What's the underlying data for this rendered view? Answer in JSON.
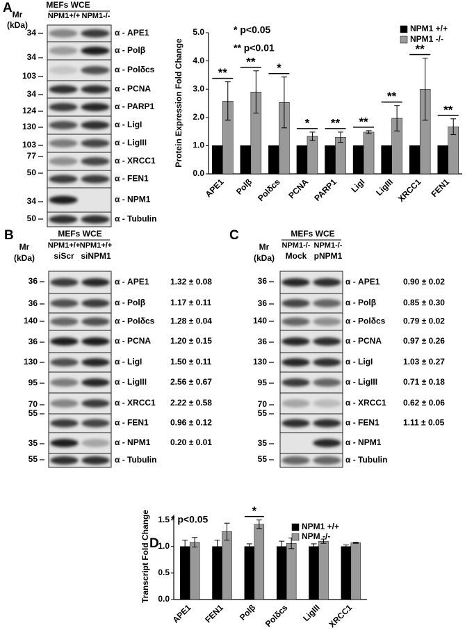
{
  "panels": [
    {
      "letter": "A",
      "header": "MEFs WCE",
      "lanes": [
        "NPM1+/+",
        "NPM1-/-"
      ],
      "mr": "Mr",
      "kda": "(kDa)",
      "markers": [
        34,
        34,
        103,
        34,
        124,
        130,
        103,
        77,
        50,
        34,
        50
      ],
      "antibodies": [
        "α - APE1",
        "α - Polβ",
        "α - Polδcs",
        "α - PCNA",
        "α - PARP1",
        "α - LigI",
        "α - LigIII",
        "α - XRCC1",
        "α - FEN1",
        "α - NPM1",
        "α - Tubulin"
      ]
    },
    {
      "letter": "B",
      "header": "MEFs WCE",
      "lanes": [
        "NPM1+/+",
        "NPM1+/+"
      ],
      "lanes2": [
        "siScr",
        "siNPM1"
      ],
      "mr": "Mr",
      "kda": "(kDa)",
      "markers": [
        36,
        36,
        140,
        36,
        130,
        95,
        70,
        55,
        35,
        55
      ],
      "antibodies": [
        "α - APE1",
        "α - Polβ",
        "α - Polδcs",
        "α - PCNA",
        "α - LigI",
        "α - LigIII",
        "α - XRCC1",
        "α - FEN1",
        "α - NPM1",
        "α - Tubulin"
      ],
      "ratios": [
        "1.32 ± 0.08",
        "1.17 ± 0.11",
        "1.28 ± 0.04",
        "1.20 ± 0.15",
        "1.50 ± 0.11",
        "2.56 ± 0.67",
        "2.22 ± 0.58",
        "0.96 ± 0.12",
        "0.20 ± 0.01"
      ]
    },
    {
      "letter": "C",
      "header": "MEFs WCE",
      "lanes": [
        "NPM1-/-",
        "NPM1-/-"
      ],
      "lanes2": [
        "Mock",
        "pNPM1"
      ],
      "mr": "Mr",
      "kda": "(kDa)",
      "markers": [
        36,
        36,
        140,
        36,
        130,
        95,
        70,
        55,
        35,
        55
      ],
      "antibodies": [
        "α - APE1",
        "α - Polβ",
        "α - Polδcs",
        "α - PCNA",
        "α - LigI",
        "α - LigIII",
        "α - XRCC1",
        "α - FEN1",
        "α - NPM1",
        "α - Tubulin"
      ],
      "ratios": [
        "0.90 ± 0.02",
        "0.85 ± 0.30",
        "0.79 ± 0.02",
        "0.97 ± 0.26",
        "1.03 ± 0.27",
        "0.71 ± 0.18",
        "0.62 ± 0.06",
        "1.11 ± 0.05"
      ]
    },
    {
      "letter": "D"
    }
  ],
  "chart_data": [
    {
      "type": "bar",
      "y_label": "Protein Expression Fold Change",
      "categories": [
        "APE1",
        "Polβ",
        "Polδcs",
        "PCNA",
        "PARP1",
        "LigI",
        "LigIII",
        "XRCC1",
        "FEN1"
      ],
      "series": [
        {
          "name": "NPM1 +/+",
          "color": "#000000",
          "values": [
            1.0,
            1.0,
            1.0,
            1.0,
            1.0,
            1.0,
            1.0,
            1.0,
            1.0
          ]
        },
        {
          "name": "NPM1 -/-",
          "color": "#999999",
          "values": [
            2.58,
            2.9,
            2.53,
            1.33,
            1.3,
            1.48,
            1.97,
            3.0,
            1.67
          ],
          "errors": [
            0.68,
            0.75,
            0.9,
            0.15,
            0.18,
            0.05,
            0.45,
            1.1,
            0.28
          ]
        }
      ],
      "significance": [
        "**",
        "**",
        "*",
        "*",
        "**",
        "**",
        "**",
        "**",
        "**"
      ],
      "annotations": [
        "* p<0.05",
        "** p<0.01"
      ],
      "ylim": [
        0,
        5
      ],
      "yticks": [
        {
          "value": 0,
          "label": "0.0"
        },
        {
          "value": 1,
          "label": "1.0"
        },
        {
          "value": 2,
          "label": "2.0"
        },
        {
          "value": 3,
          "label": "3.0"
        },
        {
          "value": 4,
          "label": "4.0"
        },
        {
          "value": 5,
          "label": "5.0"
        }
      ],
      "legend": "upper right"
    },
    {
      "type": "bar",
      "y_label": "Transcript Fold Change",
      "categories": [
        "APE1",
        "FEN1",
        "Polβ",
        "Polδcs",
        "LigIII",
        "XRCC1"
      ],
      "series": [
        {
          "name": "NPM1 +/+",
          "color": "#000000",
          "values": [
            1.0,
            1.0,
            1.0,
            1.0,
            1.0,
            1.0
          ],
          "errors": [
            0.12,
            0.12,
            0.05,
            0.1,
            0.05,
            0.03
          ]
        },
        {
          "name": "NPM -/-",
          "color": "#999999",
          "values": [
            1.08,
            1.28,
            1.42,
            1.06,
            1.1,
            1.07
          ],
          "errors": [
            0.09,
            0.16,
            0.08,
            0.1,
            0.04,
            0.01
          ]
        }
      ],
      "significance": [
        null,
        null,
        "*",
        null,
        null,
        null
      ],
      "annotations": [
        "* p<0.05"
      ],
      "ylim": [
        0,
        1.6
      ],
      "yticks": [
        {
          "value": 0,
          "label": "0.0"
        },
        {
          "value": 0.5,
          "label": "0.5"
        },
        {
          "value": 1,
          "label": "1.0"
        },
        {
          "value": 1.5,
          "label": "1.5"
        }
      ],
      "legend": "upper right"
    }
  ]
}
